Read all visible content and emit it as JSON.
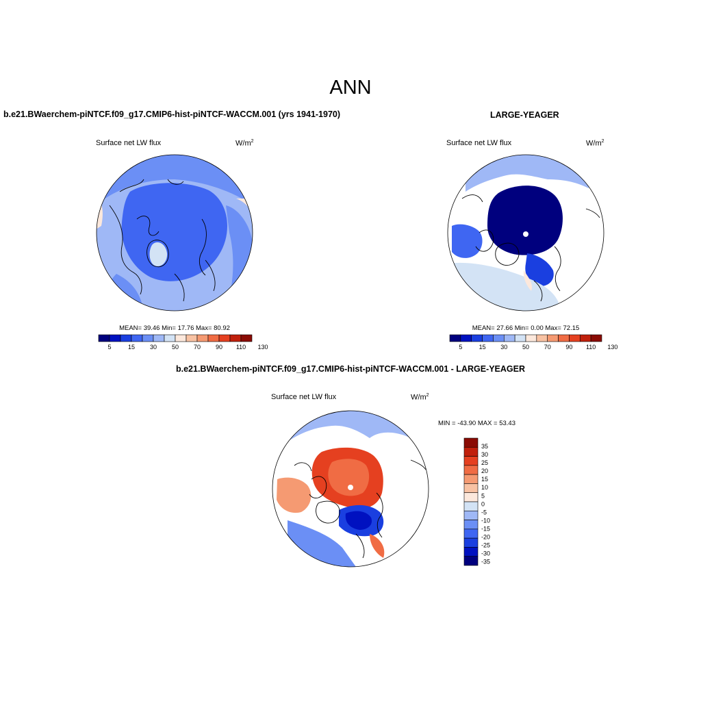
{
  "main_title": "ANN",
  "colors": {
    "abs_scale": [
      "#00007e",
      "#0011c0",
      "#1a3fe0",
      "#3f66f2",
      "#6b8ff5",
      "#9fb8f6",
      "#d3e3f5",
      "#fce8dc",
      "#f8c2a3",
      "#f59a72",
      "#f06c44",
      "#e54020",
      "#c0200c",
      "#8a0b04"
    ],
    "diff_scale": [
      "#00007e",
      "#0011c0",
      "#1a3fe0",
      "#3f66f2",
      "#6b8ff5",
      "#9fb8f6",
      "#d3e3f5",
      "#fce8dc",
      "#f8c2a3",
      "#f59a72",
      "#f06c44",
      "#e54020",
      "#c0200c",
      "#8a0b04"
    ]
  },
  "panels": {
    "top_left": {
      "title": "b.e21.BWaerchem-piNTCF.f09_g17.CMIP6-hist-piNTCF-WACCM.001 (yrs 1941-1970)",
      "variable": "Surface net LW flux",
      "units": "W/m",
      "units_exp": "2",
      "stats": "MEAN=  39.46  Min=  17.76  Max=  80.92"
    },
    "top_right": {
      "title": "LARGE-YEAGER",
      "variable": "Surface net LW flux",
      "units": "W/m",
      "units_exp": "2",
      "stats": "MEAN=  27.66  Min=   0.00  Max=  72.15"
    },
    "bottom": {
      "title": "b.e21.BWaerchem-piNTCF.f09_g17.CMIP6-hist-piNTCF-WACCM.001 - LARGE-YEAGER",
      "variable": "Surface net LW flux",
      "units": "W/m",
      "units_exp": "2",
      "minmax": "MIN = -43.90 MAX =  53.43"
    }
  },
  "chart_data": [
    {
      "type": "heatmap",
      "projection": "north-polar-stereographic",
      "title": "b.e21.BWaerchem-piNTCF.f09_g17.CMIP6-hist-piNTCF-WACCM.001 (yrs 1941-1970)",
      "variable": "Surface net LW flux",
      "units": "W/m2",
      "mean": 39.46,
      "min": 17.76,
      "max": 80.92,
      "colorbar_tick_labels": [
        "5",
        "15",
        "30",
        "50",
        "70",
        "90",
        "110",
        "130"
      ]
    },
    {
      "type": "heatmap",
      "projection": "north-polar-stereographic",
      "title": "LARGE-YEAGER",
      "variable": "Surface net LW flux",
      "units": "W/m2",
      "mean": 27.66,
      "min": 0.0,
      "max": 72.15,
      "colorbar_tick_labels": [
        "5",
        "15",
        "30",
        "50",
        "70",
        "90",
        "110",
        "130"
      ]
    },
    {
      "type": "heatmap",
      "projection": "north-polar-stereographic",
      "title": "b.e21.BWaerchem-piNTCF.f09_g17.CMIP6-hist-piNTCF-WACCM.001 - LARGE-YEAGER",
      "variable": "Surface net LW flux",
      "units": "W/m2",
      "min": -43.9,
      "max": 53.43,
      "colorbar_tick_labels": [
        "35",
        "30",
        "25",
        "20",
        "15",
        "10",
        "5",
        "0",
        "-5",
        "-10",
        "-15",
        "-20",
        "-25",
        "-30",
        "-35"
      ]
    }
  ]
}
